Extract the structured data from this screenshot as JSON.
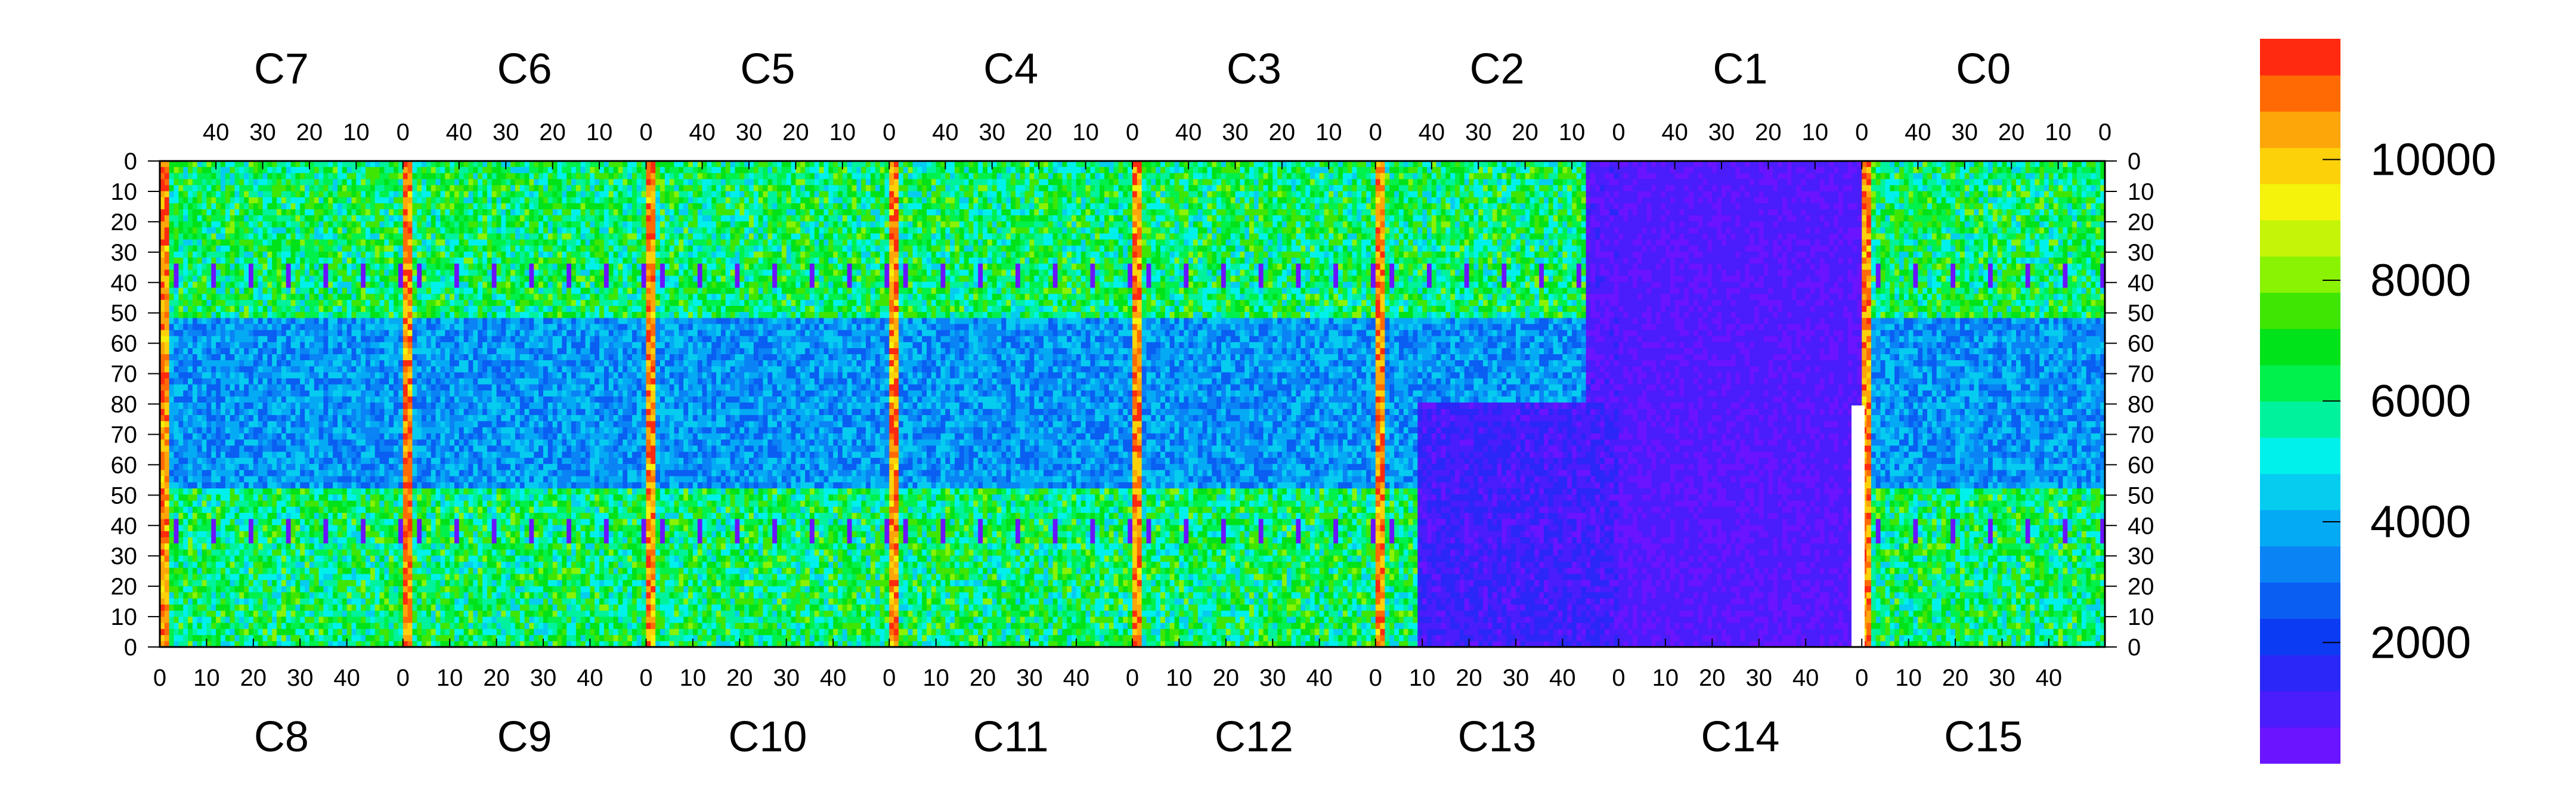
{
  "chart_data": {
    "type": "heatmap",
    "title": "",
    "chip_labels_top": [
      "C7",
      "C6",
      "C5",
      "C4",
      "C3",
      "C2",
      "C1",
      "C0"
    ],
    "chip_labels_bottom": [
      "C8",
      "C9",
      "C10",
      "C11",
      "C12",
      "C13",
      "C14",
      "C15"
    ],
    "top_axis_ticks": [
      "40",
      "30",
      "20",
      "10",
      "0"
    ],
    "bottom_axis_ticks": [
      "0",
      "10",
      "20",
      "30",
      "40"
    ],
    "y_axis_ticks": [
      "0",
      "10",
      "20",
      "30",
      "40",
      "50",
      "60",
      "70",
      "80",
      "70",
      "60",
      "50",
      "40",
      "30",
      "20",
      "10",
      "0"
    ],
    "colorbar": {
      "ticks": [
        2000,
        4000,
        6000,
        8000,
        10000
      ],
      "range": [
        0,
        12000
      ],
      "colors": [
        "#6a14ff",
        "#4a1dfb",
        "#2a27f7",
        "#0b3cf4",
        "#0a5ef2",
        "#0a83f5",
        "#05aaf4",
        "#06ccf0",
        "#00f1ec",
        "#00f29c",
        "#00f04c",
        "#00e219",
        "#3fe603",
        "#8af203",
        "#c4f408",
        "#f5f20b",
        "#fcd10a",
        "#fca60a",
        "#ff6a05",
        "#ff2a10"
      ]
    },
    "cells_per_chip": {
      "x": 52,
      "y": 81
    },
    "regions": [
      {
        "chip": "C1",
        "description": "low occupancy (mostly < 1000)",
        "level": 800
      },
      {
        "chip": "C2",
        "description": "partially low on right edge",
        "level": 1500
      },
      {
        "chip": "C13",
        "description": "low occupancy",
        "level": 800
      },
      {
        "chip": "C14",
        "description": "low occupancy",
        "level": 800
      }
    ]
  }
}
